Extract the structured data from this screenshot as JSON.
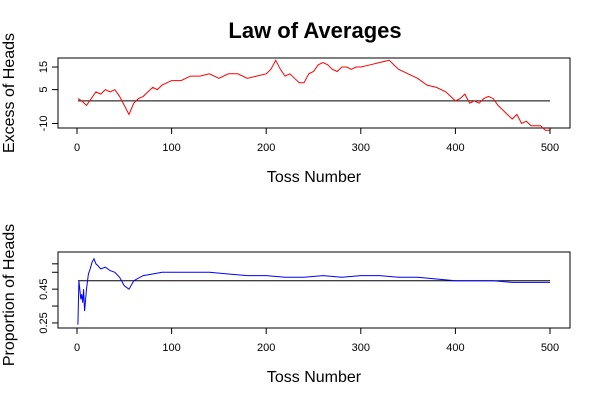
{
  "title": "Law of Averages",
  "chart_data": [
    {
      "type": "line",
      "ylabel": "Excess of Heads",
      "xlabel": "Toss Number",
      "color": "#ff0000",
      "reference_line": 0,
      "xlim": [
        0,
        500
      ],
      "ylim": [
        -12,
        19
      ],
      "xticks": [
        0,
        100,
        200,
        300,
        400,
        500
      ],
      "yticks": [
        -10,
        5,
        15
      ],
      "ytick_labels": [
        "-10",
        "5",
        "15"
      ],
      "series": [
        {
          "x": [
            1,
            5,
            10,
            15,
            20,
            25,
            30,
            35,
            40,
            45,
            50,
            55,
            60,
            65,
            70,
            75,
            80,
            85,
            90,
            95,
            100,
            110,
            120,
            130,
            140,
            150,
            160,
            170,
            180,
            190,
            200,
            205,
            210,
            215,
            220,
            225,
            230,
            235,
            240,
            245,
            250,
            255,
            260,
            265,
            270,
            275,
            280,
            285,
            290,
            295,
            300,
            310,
            320,
            330,
            340,
            350,
            360,
            370,
            380,
            390,
            400,
            405,
            410,
            415,
            420,
            425,
            430,
            435,
            440,
            445,
            450,
            455,
            460,
            465,
            470,
            475,
            480,
            485,
            490,
            495,
            500
          ],
          "values": [
            1,
            0,
            -2,
            1,
            4,
            3,
            5,
            4,
            5,
            2,
            -2,
            -6,
            -1,
            1,
            2,
            4,
            6,
            5,
            7,
            8,
            9,
            9,
            11,
            11,
            12,
            10,
            12,
            12,
            10,
            11,
            12,
            14,
            18,
            14,
            11,
            12,
            10,
            8,
            8,
            12,
            13,
            16,
            17,
            16,
            14,
            13,
            15,
            15,
            14,
            15,
            15,
            16,
            17,
            18,
            14,
            12,
            10,
            7,
            6,
            4,
            0,
            1,
            3,
            -1,
            0,
            -1,
            1,
            2,
            1,
            -2,
            -4,
            -6,
            -8,
            -6,
            -10,
            -9,
            -11,
            -11,
            -11,
            -13,
            -13
          ]
        }
      ]
    },
    {
      "type": "line",
      "ylabel": "Proportion of Heads",
      "xlabel": "Toss Number",
      "color": "#0000ff",
      "reference_line": 0.5,
      "xlim": [
        0,
        500
      ],
      "ylim": [
        0.22,
        0.67
      ],
      "xticks": [
        0,
        100,
        200,
        300,
        400,
        500
      ],
      "yticks": [
        0.25,
        0.45
      ],
      "ytick_labels": [
        "0.25",
        "0.45"
      ],
      "unlabeled_yticks": [
        0.35,
        0.55,
        0.6
      ],
      "series": [
        {
          "x": [
            1,
            2,
            3,
            4,
            5,
            6,
            7,
            8,
            10,
            12,
            14,
            16,
            18,
            20,
            22,
            25,
            30,
            35,
            40,
            45,
            50,
            55,
            60,
            70,
            80,
            90,
            100,
            120,
            140,
            160,
            180,
            200,
            220,
            240,
            260,
            280,
            300,
            320,
            340,
            360,
            380,
            400,
            420,
            440,
            460,
            480,
            500
          ],
          "values": [
            0.24,
            0.5,
            0.45,
            0.39,
            0.42,
            0.37,
            0.45,
            0.32,
            0.45,
            0.54,
            0.57,
            0.61,
            0.63,
            0.6,
            0.59,
            0.57,
            0.58,
            0.56,
            0.55,
            0.52,
            0.47,
            0.45,
            0.5,
            0.53,
            0.54,
            0.55,
            0.55,
            0.55,
            0.55,
            0.54,
            0.53,
            0.53,
            0.52,
            0.52,
            0.53,
            0.52,
            0.53,
            0.53,
            0.52,
            0.52,
            0.51,
            0.5,
            0.5,
            0.5,
            0.49,
            0.49,
            0.49
          ]
        }
      ]
    }
  ]
}
